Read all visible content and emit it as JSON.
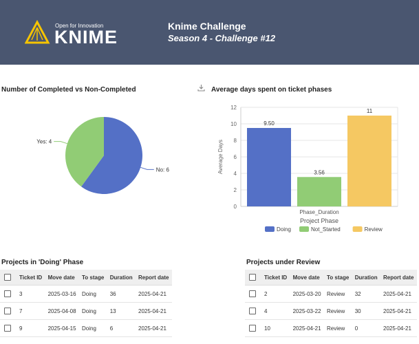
{
  "header": {
    "logo_tagline": "Open for Innovation",
    "logo_text": "KNIME",
    "title": "Knime Challenge",
    "subtitle": "Season 4 - Challenge #12"
  },
  "pie_section": {
    "title": "Number of Completed vs Non-Completed"
  },
  "bar_section": {
    "title": "Average days spent on ticket phases"
  },
  "colors": {
    "doing": "#5470c6",
    "not_started": "#91cc75",
    "review": "#f5c862",
    "header_bg": "#4a5670",
    "logo_yellow": "#f6c400"
  },
  "chart_data": [
    {
      "type": "pie",
      "title": "Number of Completed vs Non-Completed",
      "slices": [
        {
          "label": "No",
          "value": 6,
          "display": "No: 6",
          "color": "#5470c6"
        },
        {
          "label": "Yes",
          "value": 4,
          "display": "Yes: 4",
          "color": "#91cc75"
        }
      ]
    },
    {
      "type": "bar",
      "title": "Average days spent on ticket phases",
      "xlabel": "Project Phase",
      "ylabel": "Average Days",
      "categories": [
        "Phase_Duration"
      ],
      "ylim": [
        0,
        12
      ],
      "yticks": [
        "0",
        "2",
        "4",
        "6",
        "8",
        "10",
        "12"
      ],
      "series": [
        {
          "name": "Doing",
          "values": [
            9.5
          ],
          "label": "9.50",
          "color": "#5470c6"
        },
        {
          "name": "Not_Started",
          "values": [
            3.56
          ],
          "label": "3.56",
          "color": "#91cc75"
        },
        {
          "name": "Review",
          "values": [
            11
          ],
          "label": "11",
          "color": "#f5c862"
        }
      ],
      "legend": "bottom"
    }
  ],
  "doing_table": {
    "title": "Projects in 'Doing' Phase",
    "columns": [
      "Ticket ID",
      "Move date",
      "To stage",
      "Duration",
      "Report date"
    ],
    "rows": [
      [
        "3",
        "2025-03-16",
        "Doing",
        "36",
        "2025-04-21"
      ],
      [
        "7",
        "2025-04-08",
        "Doing",
        "13",
        "2025-04-21"
      ],
      [
        "9",
        "2025-04-15",
        "Doing",
        "6",
        "2025-04-21"
      ]
    ]
  },
  "review_table": {
    "title": "Projects under Review",
    "columns": [
      "Ticket ID",
      "Move date",
      "To stage",
      "Duration",
      "Report date"
    ],
    "rows": [
      [
        "2",
        "2025-03-20",
        "Review",
        "32",
        "2025-04-21"
      ],
      [
        "4",
        "2025-03-22",
        "Review",
        "30",
        "2025-04-21"
      ],
      [
        "10",
        "2025-04-21",
        "Review",
        "0",
        "2025-04-21"
      ]
    ]
  }
}
